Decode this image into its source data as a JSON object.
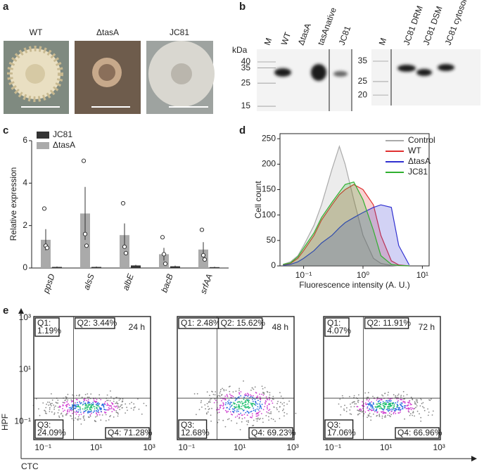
{
  "panel_a": {
    "letter": "a",
    "labels": [
      "WT",
      "ΔtasA",
      "JC81"
    ]
  },
  "panel_b": {
    "letter": "b",
    "unit": "kDa",
    "left_lanes": [
      "M",
      "WT",
      "ΔtasA",
      "tasAnative",
      "JC81"
    ],
    "left_ticks": [
      40,
      35,
      25,
      15
    ],
    "right_lanes": [
      "M",
      "JC81 DRM",
      "JC81 DSM",
      "JC81 cytosol"
    ],
    "right_ticks": [
      35,
      25,
      20
    ]
  },
  "chart_data": [
    {
      "type": "bar",
      "letter": "c",
      "y_label": "Relative expression",
      "categories": [
        "ppsD",
        "alsS",
        "albE",
        "bacB",
        "srfAA"
      ],
      "series": [
        {
          "name": "JC81",
          "color": "#333333",
          "values": [
            0.05,
            0.05,
            0.12,
            0.08,
            0.04
          ],
          "errors": [
            0.02,
            0.02,
            0.03,
            0.03,
            0.02
          ]
        },
        {
          "name": "ΔtasA",
          "color": "#aaaaaa",
          "values": [
            1.33,
            2.57,
            1.55,
            0.65,
            0.87
          ],
          "errors": [
            0.5,
            1.25,
            0.55,
            0.3,
            0.35
          ],
          "points": [
            [
              2.8,
              1.05,
              0.95
            ],
            [
              5.05,
              1.6,
              1.05
            ],
            [
              3.05,
              1.0,
              0.7
            ],
            [
              1.45,
              0.65,
              0.2
            ],
            [
              1.8,
              0.6,
              0.4
            ]
          ]
        }
      ],
      "ylim": [
        0,
        6
      ],
      "yticks": [
        0,
        2,
        4,
        6
      ]
    },
    {
      "type": "area",
      "letter": "d",
      "x_label": "Fluorescence intensity (A. U.)",
      "y_label": "Cell count",
      "log_x": true,
      "x": [
        0.045,
        0.06,
        0.08,
        0.1,
        0.15,
        0.2,
        0.3,
        0.4,
        0.5,
        0.7,
        1,
        1.5,
        2,
        3,
        4,
        6
      ],
      "series": [
        {
          "name": "Control",
          "color": "#aaaaaa",
          "values": [
            3,
            8,
            20,
            40,
            80,
            120,
            190,
            235,
            200,
            130,
            60,
            15,
            5,
            1,
            0,
            0
          ]
        },
        {
          "name": "WT",
          "color": "#e03030",
          "values": [
            2,
            5,
            15,
            30,
            60,
            90,
            120,
            140,
            150,
            160,
            150,
            120,
            60,
            10,
            2,
            0
          ]
        },
        {
          "name": "ΔtasA",
          "color": "#3030d0",
          "values": [
            1,
            3,
            8,
            15,
            30,
            45,
            60,
            75,
            85,
            95,
            105,
            115,
            120,
            115,
            40,
            2
          ]
        },
        {
          "name": "JC81",
          "color": "#30b030",
          "values": [
            3,
            6,
            18,
            35,
            65,
            95,
            125,
            145,
            160,
            165,
            130,
            70,
            20,
            3,
            1,
            0
          ]
        }
      ],
      "xlim": [
        0.04,
        13
      ],
      "xticks": [
        {
          "value": 0.1,
          "label": "10⁻¹"
        },
        {
          "value": 1,
          "label": "10⁰"
        },
        {
          "value": 10,
          "label": "10¹"
        }
      ],
      "ylim": [
        0,
        260
      ],
      "yticks": [
        0,
        50,
        100,
        150,
        200,
        250
      ]
    }
  ],
  "panel_e": {
    "letter": "e",
    "y_title": "HPF",
    "x_title": "CTC",
    "tick_labels": [
      "10⁻¹",
      "10¹",
      "10³"
    ],
    "plots": [
      {
        "time": "24 h",
        "q1": [
          "Q1:",
          "1.19%"
        ],
        "q2": "Q2: 3.44%",
        "q3": [
          "Q3:",
          "24.09%"
        ],
        "q4": "Q4: 71.28%"
      },
      {
        "time": "48 h",
        "q1": [
          "Q1: 2.48%"
        ],
        "q2": "Q2: 15.62%",
        "q3": [
          "Q3:",
          "12.68%"
        ],
        "q4": "Q4: 69.23%"
      },
      {
        "time": "72 h",
        "q1": [
          "Q1:",
          "4.07%"
        ],
        "q2": "Q2: 11.91%",
        "q3": [
          "Q3:",
          "17.06%"
        ],
        "q4": "Q4: 66.96%"
      }
    ]
  }
}
